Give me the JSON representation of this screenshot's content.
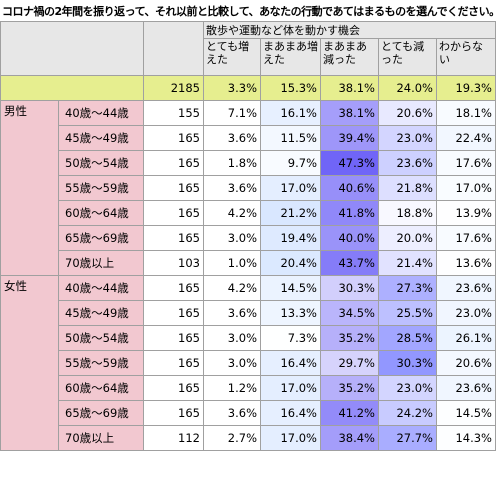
{
  "title": "コロナ禍の2年間を振り返って、それ以前と比較して、あなたの行動であてはまるものを選んでください。",
  "chart_data": {
    "type": "table",
    "question": "散歩や運動など体を動かす機会",
    "columns": [
      "とても増えた",
      "まあまあ増えた",
      "まあまあ減った",
      "とても減った",
      "わからない"
    ],
    "total": {
      "n": "2185",
      "values": [
        "3.3%",
        "15.3%",
        "38.1%",
        "24.0%",
        "19.3%"
      ]
    },
    "groups": [
      {
        "label": "男性",
        "rows": [
          {
            "label": "40歳～44歳",
            "n": "155",
            "values": [
              "7.1%",
              "16.1%",
              "38.1%",
              "20.6%",
              "18.1%"
            ]
          },
          {
            "label": "45歳～49歳",
            "n": "165",
            "values": [
              "3.6%",
              "11.5%",
              "39.4%",
              "23.0%",
              "22.4%"
            ]
          },
          {
            "label": "50歳～54歳",
            "n": "165",
            "values": [
              "1.8%",
              "9.7%",
              "47.3%",
              "23.6%",
              "17.6%"
            ]
          },
          {
            "label": "55歳～59歳",
            "n": "165",
            "values": [
              "3.6%",
              "17.0%",
              "40.6%",
              "21.8%",
              "17.0%"
            ]
          },
          {
            "label": "60歳～64歳",
            "n": "165",
            "values": [
              "4.2%",
              "21.2%",
              "41.8%",
              "18.8%",
              "13.9%"
            ]
          },
          {
            "label": "65歳～69歳",
            "n": "165",
            "values": [
              "3.0%",
              "19.4%",
              "40.0%",
              "20.0%",
              "17.6%"
            ]
          },
          {
            "label": "70歳以上",
            "n": "103",
            "values": [
              "1.0%",
              "20.4%",
              "43.7%",
              "21.4%",
              "13.6%"
            ]
          }
        ]
      },
      {
        "label": "女性",
        "rows": [
          {
            "label": "40歳～44歳",
            "n": "165",
            "values": [
              "4.2%",
              "14.5%",
              "30.3%",
              "27.3%",
              "23.6%"
            ]
          },
          {
            "label": "45歳～49歳",
            "n": "165",
            "values": [
              "3.6%",
              "13.3%",
              "34.5%",
              "25.5%",
              "23.0%"
            ]
          },
          {
            "label": "50歳～54歳",
            "n": "165",
            "values": [
              "3.0%",
              "7.3%",
              "35.2%",
              "28.5%",
              "26.1%"
            ]
          },
          {
            "label": "55歳～59歳",
            "n": "165",
            "values": [
              "3.0%",
              "16.4%",
              "29.7%",
              "30.3%",
              "20.6%"
            ]
          },
          {
            "label": "60歳～64歳",
            "n": "165",
            "values": [
              "1.2%",
              "17.0%",
              "35.2%",
              "23.0%",
              "23.6%"
            ]
          },
          {
            "label": "65歳～69歳",
            "n": "165",
            "values": [
              "3.6%",
              "16.4%",
              "41.2%",
              "24.2%",
              "14.5%"
            ]
          },
          {
            "label": "70歳以上",
            "n": "112",
            "values": [
              "2.7%",
              "17.0%",
              "38.4%",
              "27.7%",
              "14.3%"
            ]
          }
        ]
      }
    ]
  }
}
